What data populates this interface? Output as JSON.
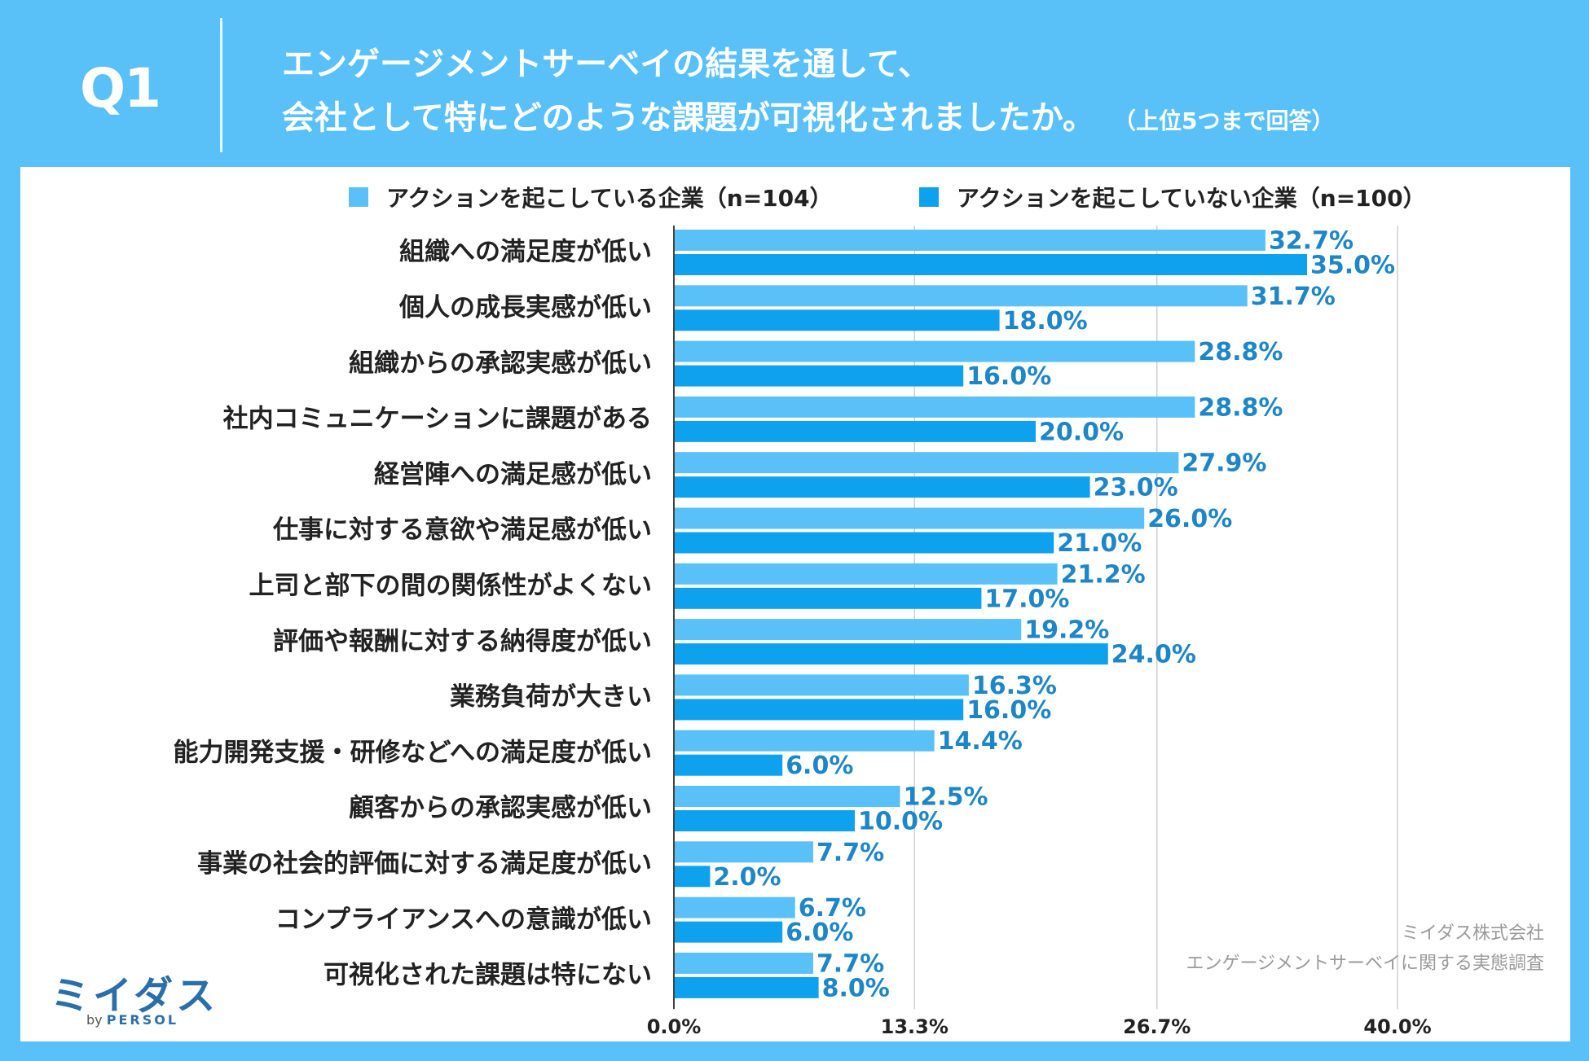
{
  "header": {
    "q_label": "Q1",
    "title_line1": "エンゲージメントサーベイの結果を通して、",
    "title_line2": "会社として特にどのような課題が可視化されましたか。",
    "title_note": "（上位5つまで回答）"
  },
  "legend": {
    "series1": "アクションを起こしている企業（n=104）",
    "series2": "アクションを起こしていない企業（n=100）"
  },
  "colors": {
    "frame": "#59c1f7",
    "series1": "#59c1f7",
    "series2": "#0ea2ee",
    "value_text": "#1d86c7"
  },
  "source": {
    "line1": "ミイダス株式会社",
    "line2": "エンゲージメントサーベイに関する実態調査"
  },
  "logo": {
    "main": "ミイダス",
    "by": "by",
    "brand": "PERSOL"
  },
  "chart_data": {
    "type": "bar",
    "orientation": "horizontal",
    "categories": [
      "組織への満足度が低い",
      "個人の成長実感が低い",
      "組織からの承認実感が低い",
      "社内コミュニケーションに課題がある",
      "経営陣への満足感が低い",
      "仕事に対する意欲や満足感が低い",
      "上司と部下の間の関係性がよくない",
      "評価や報酬に対する納得度が低い",
      "業務負荷が大きい",
      "能力開発支援・研修などへの満足度が低い",
      "顧客からの承認実感が低い",
      "事業の社会的評価に対する満足度が低い",
      "コンプライアンスへの意識が低い",
      "可視化された課題は特にない"
    ],
    "series": [
      {
        "name": "アクションを起こしている企業（n=104）",
        "values": [
          32.7,
          31.7,
          28.8,
          28.8,
          27.9,
          26.0,
          21.2,
          19.2,
          16.3,
          14.4,
          12.5,
          7.7,
          6.7,
          7.7
        ]
      },
      {
        "name": "アクションを起こしていない企業（n=100）",
        "values": [
          35.0,
          18.0,
          16.0,
          20.0,
          23.0,
          21.0,
          17.0,
          24.0,
          16.0,
          6.0,
          10.0,
          2.0,
          6.0,
          8.0
        ]
      }
    ],
    "xlim": [
      0,
      40
    ],
    "xticks": [
      0,
      13.3,
      26.7,
      40
    ],
    "xtick_labels": [
      "0.0%",
      "13.3%",
      "26.7%",
      "40.0%"
    ],
    "value_suffix": "%",
    "grid": true,
    "legend_position": "top"
  }
}
